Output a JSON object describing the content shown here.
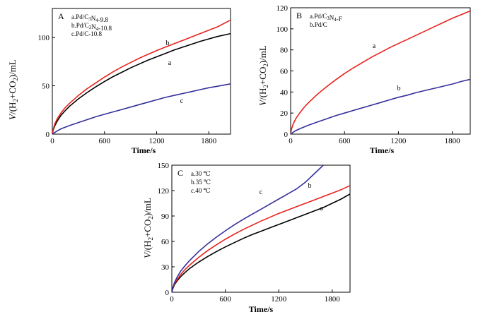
{
  "chart_data": [
    {
      "type": "line",
      "panel_label": "A",
      "annotation": [
        "a.Pd/C3N4-9.8",
        "b.Pd/C3N4-10.8",
        "c.Pd/C-10.8"
      ],
      "xlabel": "Time/s",
      "ylabel": "V/(H2+CO2)/mL",
      "xlim": [
        0,
        2050
      ],
      "ylim": [
        0,
        130
      ],
      "xticks": [
        "0",
        "600",
        "1200",
        "1800"
      ],
      "yticks": [
        "0",
        "50",
        "100"
      ],
      "colors": {
        "a": "#000000",
        "b": "#e8231c",
        "c": "#34309a"
      },
      "series": [
        {
          "name": "a",
          "x": [
            0,
            10,
            30,
            60,
            100,
            150,
            200,
            300,
            400,
            500,
            600,
            700,
            800,
            900,
            1000,
            1100,
            1200,
            1300,
            1400,
            1500,
            1600,
            1700,
            1800,
            1900,
            2050
          ],
          "y": [
            0,
            4,
            9,
            14,
            19.5,
            24.5,
            29,
            36.5,
            43,
            49,
            54.5,
            59.5,
            64,
            68.5,
            72.5,
            76.5,
            80,
            83.5,
            87,
            90,
            93,
            96,
            98.5,
            101,
            104
          ]
        },
        {
          "name": "b",
          "x": [
            0,
            10,
            30,
            60,
            100,
            150,
            200,
            300,
            400,
            500,
            600,
            700,
            800,
            900,
            1000,
            1100,
            1200,
            1300,
            1400,
            1500,
            1600,
            1700,
            1800,
            1900,
            2050
          ],
          "y": [
            0,
            5,
            11,
            16.5,
            22,
            27.5,
            32,
            40,
            47,
            53,
            59,
            64.5,
            69.5,
            74,
            78.5,
            82.5,
            86.5,
            90,
            93.5,
            97,
            100.5,
            104,
            107.5,
            111,
            118
          ]
        },
        {
          "name": "c",
          "x": [
            0,
            50,
            100,
            200,
            300,
            400,
            500,
            600,
            700,
            800,
            900,
            1000,
            1100,
            1200,
            1300,
            1400,
            1500,
            1600,
            1700,
            1800,
            1900,
            2050
          ],
          "y": [
            0,
            3,
            5.5,
            9,
            12,
            15,
            18,
            20.5,
            23,
            25.5,
            28,
            30.5,
            33,
            35.5,
            38,
            40,
            42,
            44,
            46,
            48,
            49.5,
            52
          ]
        }
      ]
    },
    {
      "type": "line",
      "panel_label": "B",
      "annotation": [
        "a.Pd/C3N4-F",
        "b.Pd/C"
      ],
      "xlabel": "Time/s",
      "ylabel": "V/(H2+CO2)/mL",
      "xlim": [
        0,
        2000
      ],
      "ylim": [
        0,
        120
      ],
      "xticks": [
        "0",
        "600",
        "1200",
        "1800"
      ],
      "yticks": [
        "0",
        "20",
        "40",
        "60",
        "80",
        "100",
        "120"
      ],
      "colors": {
        "a": "#e8231c",
        "b": "#34309a"
      },
      "series": [
        {
          "name": "a",
          "x": [
            0,
            10,
            30,
            60,
            100,
            150,
            200,
            300,
            400,
            500,
            600,
            700,
            800,
            900,
            1000,
            1100,
            1200,
            1300,
            1400,
            1500,
            1600,
            1700,
            1800,
            1900,
            2000
          ],
          "y": [
            0,
            5,
            10,
            15,
            20,
            25.5,
            30,
            38,
            45,
            51.5,
            57.5,
            63,
            68,
            73,
            77.5,
            82,
            86,
            90,
            94,
            98,
            102,
            106,
            110,
            113.5,
            117
          ]
        },
        {
          "name": "b",
          "x": [
            0,
            50,
            100,
            200,
            300,
            400,
            500,
            600,
            700,
            800,
            900,
            1000,
            1100,
            1200,
            1300,
            1400,
            1500,
            1600,
            1700,
            1800,
            1900,
            2000
          ],
          "y": [
            0,
            3,
            5,
            8.5,
            11.5,
            14.5,
            17.5,
            20,
            22.5,
            25,
            27.5,
            30,
            32.5,
            35,
            37,
            39.5,
            41.5,
            43.5,
            45.5,
            47.5,
            50,
            52
          ]
        }
      ]
    },
    {
      "type": "line",
      "panel_label": "C",
      "annotation": [
        "a.30 ℃",
        "b.35 ℃",
        "c.40 ℃"
      ],
      "xlabel": "Time/s",
      "ylabel": "V/(H2+CO2)/mL",
      "xlim": [
        0,
        2000
      ],
      "ylim": [
        0,
        150
      ],
      "xticks": [
        "0",
        "600",
        "1200",
        "1800"
      ],
      "yticks": [
        "0",
        "30",
        "60",
        "90",
        "120",
        "150"
      ],
      "colors": {
        "a": "#000000",
        "b": "#e8231c",
        "c": "#34309a"
      },
      "series": [
        {
          "name": "a",
          "x": [
            0,
            10,
            30,
            60,
            100,
            150,
            200,
            300,
            400,
            500,
            600,
            700,
            800,
            900,
            1000,
            1100,
            1200,
            1300,
            1400,
            1500,
            1600,
            1700,
            1800,
            1900,
            2000
          ],
          "y": [
            0,
            4,
            9,
            13.5,
            18.5,
            23.5,
            28,
            35.5,
            42,
            48,
            53.5,
            58.5,
            63.5,
            68,
            72,
            76,
            80,
            84,
            88,
            92,
            96,
            100,
            105,
            110,
            116
          ]
        },
        {
          "name": "b",
          "x": [
            0,
            10,
            30,
            60,
            100,
            150,
            200,
            300,
            400,
            500,
            600,
            700,
            800,
            900,
            1000,
            1100,
            1200,
            1300,
            1400,
            1500,
            1600,
            1700,
            1800,
            1900,
            2000
          ],
          "y": [
            0,
            4.5,
            10,
            15,
            21,
            27,
            32,
            41,
            49,
            56,
            62.5,
            68.5,
            74,
            79,
            84,
            88.5,
            93,
            97,
            101,
            105,
            109,
            113,
            117,
            121,
            126
          ]
        },
        {
          "name": "c",
          "x": [
            0,
            10,
            30,
            60,
            100,
            150,
            200,
            300,
            400,
            500,
            600,
            700,
            800,
            900,
            1000,
            1100,
            1200,
            1300,
            1400,
            1500,
            1600,
            1700
          ],
          "y": [
            0,
            5,
            11.5,
            18,
            25,
            31.5,
            37.5,
            48,
            57,
            65,
            72.5,
            79.5,
            86,
            92,
            98,
            104,
            110,
            116,
            122,
            130,
            140,
            150
          ]
        }
      ]
    }
  ]
}
